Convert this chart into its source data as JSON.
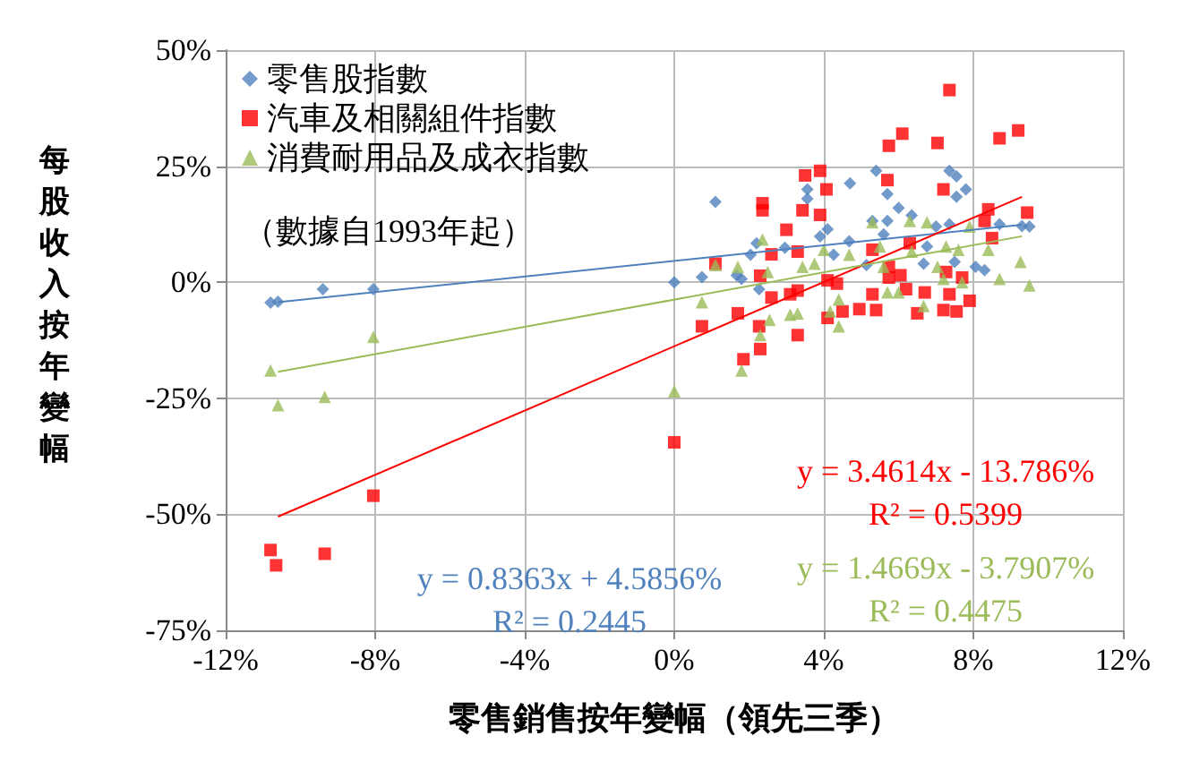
{
  "chart_data": {
    "type": "scatter",
    "xlabel": "零售銷售按年變幅（領先三季）",
    "ylabel": "每股收入按年變幅",
    "xlim": [
      -12,
      12
    ],
    "xticks": [
      {
        "value": -12,
        "label": "-12%"
      },
      {
        "value": -8,
        "label": "-8%"
      },
      {
        "value": -4,
        "label": "-4%"
      },
      {
        "value": 0,
        "label": "0%"
      },
      {
        "value": 4,
        "label": "4%"
      },
      {
        "value": 8,
        "label": "8%"
      },
      {
        "value": 12,
        "label": "12%"
      }
    ],
    "ylim": [
      -75,
      50
    ],
    "yticks": [
      {
        "value": -75,
        "label": "-75%"
      },
      {
        "value": -50,
        "label": "-50%"
      },
      {
        "value": -25,
        "label": "-25%"
      },
      {
        "value": 0,
        "label": "0%"
      },
      {
        "value": 25,
        "label": "25%"
      },
      {
        "value": 50,
        "label": "50%"
      }
    ],
    "grid": true,
    "legend": "top left",
    "annotations": [
      "（數據自1993年起）",
      "y = 0.8363x + 4.5856%",
      "R² = 0.2445",
      "y = 3.4614x - 13.786%",
      "R² = 0.5399",
      "y = 1.4669x - 3.7907%",
      "R² = 0.4475"
    ],
    "series": [
      {
        "name": "零售股指數",
        "marker": "diamond",
        "color": "#4f81bd",
        "x": [
          -10.8,
          -10.6,
          -9.4,
          -8.05,
          0,
          0.74,
          1.1,
          5.4,
          7.36,
          7.55,
          7.8,
          7.55,
          5.7,
          4.7,
          3.56,
          3.56,
          6,
          6.35,
          5.3,
          5.7,
          4.1,
          3.9,
          4.68,
          5.6,
          7,
          7.36,
          8.7,
          9.3,
          9.5,
          2.2,
          2.96,
          2.04,
          6.76,
          8.06,
          8.3,
          7.5,
          1.67,
          2.27,
          1.8,
          5.14,
          6.67,
          4.26
        ],
        "values": [
          -4.4,
          -4.2,
          -1.5,
          -1.5,
          0,
          1.1,
          17.3,
          24,
          24,
          22.8,
          20,
          18.4,
          19,
          21.3,
          20,
          18,
          16,
          14.4,
          13.2,
          13.2,
          11.4,
          9.9,
          8.8,
          10.3,
          12,
          12.5,
          12.5,
          12.1,
          12,
          8.4,
          7.4,
          5.9,
          7.7,
          3.3,
          2.6,
          4.4,
          1.5,
          -1.5,
          0.7,
          3.7,
          4,
          5.9
        ]
      },
      {
        "name": "汽車及相關組件指數",
        "marker": "square",
        "color": "#ff0000",
        "x": [
          -10.8,
          -10.65,
          -9.35,
          -8.05,
          0,
          0.74,
          7.36,
          5.74,
          6.1,
          7.04,
          8.7,
          9.2,
          3.5,
          3.9,
          4.07,
          5.7,
          7.2,
          2.36,
          2.36,
          3.43,
          3.9,
          3.0,
          9.44,
          8.4,
          8.3,
          8.5,
          1.1,
          2.6,
          1.7,
          2.27,
          2.3,
          1.85,
          3.3,
          3.1,
          3.3,
          4.1,
          4.5,
          4.95,
          5.4,
          5.3,
          6.5,
          6.7,
          7.2,
          7.55,
          7.36,
          7.9,
          4.1,
          4.35,
          5.74,
          6.05,
          6.2,
          2.6,
          3.3,
          5.3,
          5.74,
          6.3,
          7.27,
          7.7,
          2.3
        ],
        "values": [
          -57.7,
          -61,
          -58.5,
          -46,
          -34.5,
          -9.5,
          41.4,
          29.4,
          32,
          30,
          31,
          32.7,
          23,
          24,
          20,
          22,
          20,
          17,
          15.5,
          15.5,
          14.5,
          11.3,
          15,
          15.7,
          13.2,
          9.5,
          4,
          -3.3,
          -6.7,
          -9.5,
          -14.4,
          -16.6,
          -11.4,
          -2.6,
          -1.8,
          -7.7,
          -6.3,
          -5.8,
          -6,
          -2.6,
          -6.7,
          -2.2,
          -6,
          -6.3,
          -2.6,
          -4,
          0.4,
          -0.3,
          1,
          1.5,
          -1.5,
          6,
          6.6,
          7,
          3.3,
          8.4,
          2.2,
          1,
          1.4
        ]
      },
      {
        "name": "消費耐用品及成衣指數",
        "marker": "triangle",
        "color": "#9bbb59",
        "x": [
          -10.8,
          -10.6,
          -9.35,
          -8.05,
          0,
          0.74,
          2.36,
          6.76,
          5.3,
          6.3,
          7.9,
          1.1,
          1.7,
          2.5,
          3.43,
          4,
          4.68,
          5.5,
          6.35,
          7.04,
          7.27,
          7.6,
          8.4,
          9.26,
          8.7,
          9.5,
          7.2,
          7.7,
          5.7,
          6,
          6.67,
          4.4,
          4.17,
          4.4,
          3.3,
          3.1,
          2.55,
          2.3,
          1.8,
          5.6,
          3.75
        ],
        "values": [
          -19,
          -26.5,
          -24.7,
          -11.8,
          -23.5,
          -4.3,
          9.2,
          12.9,
          12.9,
          13.2,
          12,
          3.7,
          3.3,
          2.2,
          3.3,
          7,
          5.9,
          7.7,
          6.6,
          3.3,
          7.7,
          7,
          7,
          4.4,
          0.7,
          -0.7,
          0.7,
          0,
          -2.2,
          -2.2,
          -5.1,
          -3.7,
          -6.3,
          -9.5,
          -6.7,
          -7,
          -8.1,
          -11.4,
          -19,
          3.3,
          4
        ]
      },
      {
        "type": "line",
        "color": "#4f81bd",
        "x": [
          -10.6,
          9.3
        ],
        "values": [
          -4.3,
          12.4
        ]
      },
      {
        "type": "line",
        "color": "#ff0000",
        "x": [
          -10.6,
          9.3
        ],
        "values": [
          -50.5,
          18.4
        ]
      },
      {
        "type": "line",
        "color": "#9bbb59",
        "x": [
          -10.6,
          9.3
        ],
        "values": [
          -19.3,
          9.9
        ]
      }
    ]
  }
}
